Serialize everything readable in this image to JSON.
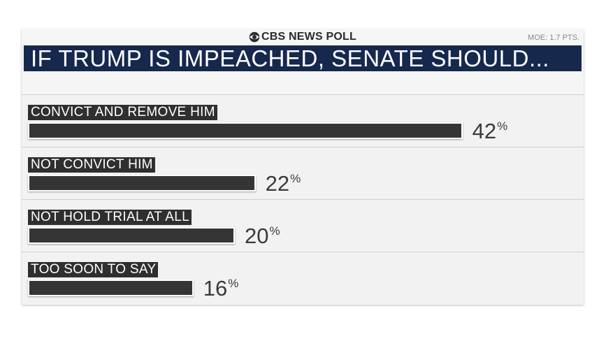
{
  "header": {
    "brand": "CBS NEWS POLL",
    "moe": "MOE: 1.7 PTS.",
    "title": "IF TRUMP IS IMPEACHED, SENATE SHOULD..."
  },
  "colors": {
    "title_bg": "#17284d",
    "bar": "#353535",
    "label_bg": "#2f2f2f",
    "card_bg": "#f2f2f2"
  },
  "chart_data": {
    "type": "bar",
    "orientation": "horizontal",
    "title": "IF TRUMP IS IMPEACHED, SENATE SHOULD...",
    "categories": [
      "CONVICT AND REMOVE HIM",
      "NOT CONVICT HIM",
      "NOT HOLD TRIAL AT ALL",
      "TOO SOON TO SAY"
    ],
    "values": [
      42,
      22,
      20,
      16
    ],
    "value_labels": [
      "42",
      "22",
      "20",
      "16"
    ],
    "unit": "%",
    "xlim": [
      0,
      50
    ],
    "grid": false,
    "legend": "none"
  }
}
